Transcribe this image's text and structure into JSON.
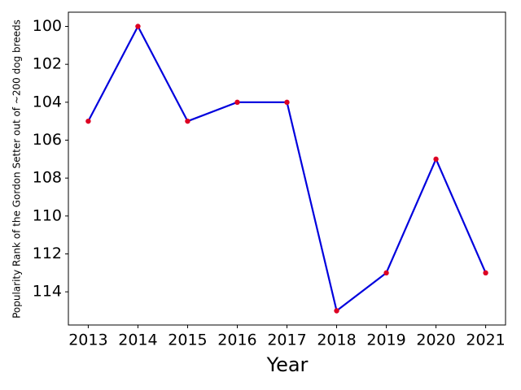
{
  "chart_data": {
    "type": "line",
    "x_label": "Year",
    "y_label": "Popularity Rank of the Gordon Setter out of ~200 dog breeds",
    "x": [
      2013,
      2014,
      2015,
      2016,
      2017,
      2018,
      2019,
      2020,
      2021
    ],
    "series": [
      {
        "color": "#0000dd",
        "marker_color": "#dd0022",
        "values": [
          105,
          100,
          105,
          104,
          104,
          115,
          113,
          107,
          113
        ]
      }
    ],
    "xlim": [
      2012.6,
      2021.4
    ],
    "xticks": [
      2013,
      2014,
      2015,
      2016,
      2017,
      2018,
      2019,
      2020,
      2021
    ],
    "ylim": [
      115.75,
      99.25
    ],
    "yticks": [
      100,
      102,
      104,
      106,
      108,
      110,
      112,
      114
    ],
    "grid": false
  }
}
